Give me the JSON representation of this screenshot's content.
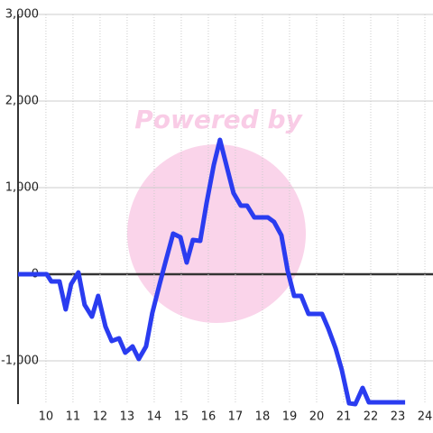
{
  "chart_data": {
    "type": "line",
    "watermark": "Powered by",
    "x": [
      8.97,
      10.03,
      10.2,
      10.5,
      10.73,
      10.93,
      11.2,
      11.43,
      11.7,
      11.93,
      12.2,
      12.43,
      12.7,
      12.93,
      13.2,
      13.43,
      13.7,
      13.93,
      14.2,
      14.43,
      14.7,
      14.97,
      15.2,
      15.43,
      15.7,
      15.93,
      16.2,
      16.43,
      16.7,
      16.93,
      17.2,
      17.43,
      17.7,
      18.2,
      18.43,
      18.7,
      18.93,
      19.17,
      19.43,
      19.7,
      20.2,
      20.43,
      20.7,
      20.93,
      21.2,
      21.43,
      21.7,
      21.93,
      23.27
    ],
    "series": [
      {
        "color": "#2a3cf0",
        "values": [
          0,
          0,
          -83,
          -83,
          -406,
          -115,
          21,
          -354,
          -490,
          -250,
          -604,
          -771,
          -740,
          -906,
          -833,
          -979,
          -833,
          -448,
          -115,
          156,
          469,
          427,
          135,
          396,
          385,
          813,
          1260,
          1552,
          1219,
          938,
          792,
          792,
          656,
          656,
          604,
          448,
          42,
          -250,
          -250,
          -458,
          -458,
          -625,
          -854,
          -1104,
          -1490,
          -1500,
          -1313,
          -1479,
          -1479
        ]
      }
    ],
    "xlim": [
      8.97,
      24.3
    ],
    "xticks": [
      10,
      11,
      12,
      13,
      14,
      15,
      16,
      17,
      18,
      19,
      20,
      21,
      22,
      23,
      24
    ],
    "ylim": [
      -1500,
      3000
    ],
    "yticks": [
      {
        "value": -1000,
        "label": "-1,000"
      },
      0,
      {
        "value": 1000,
        "label": "1,000"
      },
      {
        "value": 2000,
        "label": "2,000"
      },
      {
        "value": 3000,
        "label": "3,000"
      }
    ],
    "grid": true
  }
}
